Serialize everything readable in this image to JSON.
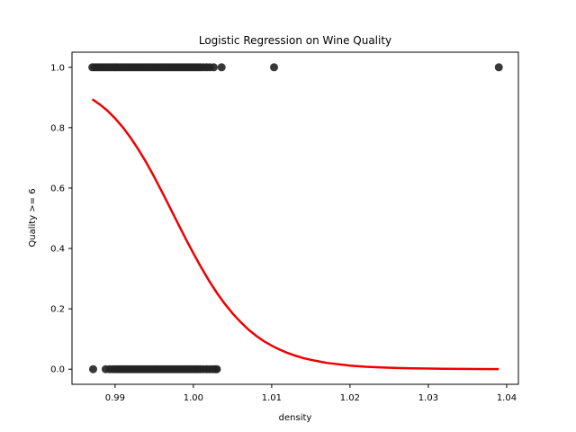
{
  "chart_data": {
    "type": "scatter",
    "title": "Logistic Regression on Wine Quality",
    "xlabel": "density",
    "ylabel": "Quality >= 6",
    "xlim": [
      0.9845,
      1.0415
    ],
    "ylim": [
      -0.05,
      1.05
    ],
    "x_ticks": [
      0.99,
      1.0,
      1.01,
      1.02,
      1.03,
      1.04
    ],
    "x_tick_labels": [
      "0.99",
      "1.00",
      "1.01",
      "1.02",
      "1.03",
      "1.04"
    ],
    "y_ticks": [
      0.0,
      0.2,
      0.4,
      0.6,
      0.8,
      1.0
    ],
    "y_tick_labels": [
      "0.0",
      "0.2",
      "0.4",
      "0.6",
      "0.8",
      "1.0"
    ],
    "grid": false,
    "point_color": "#222222",
    "line_color": "#ee0000",
    "series": [
      {
        "kind": "points",
        "points": [
          {
            "x": 0.9871,
            "y": 1
          },
          {
            "x": 0.9874,
            "y": 1
          },
          {
            "x": 0.9877,
            "y": 1
          },
          {
            "x": 0.988,
            "y": 1
          },
          {
            "x": 0.9883,
            "y": 1
          },
          {
            "x": 0.9886,
            "y": 1
          },
          {
            "x": 0.9889,
            "y": 1
          },
          {
            "x": 0.9892,
            "y": 1
          },
          {
            "x": 0.9895,
            "y": 1
          },
          {
            "x": 0.9898,
            "y": 1
          },
          {
            "x": 0.9901,
            "y": 1
          },
          {
            "x": 0.9904,
            "y": 1
          },
          {
            "x": 0.9907,
            "y": 1
          },
          {
            "x": 0.991,
            "y": 1
          },
          {
            "x": 0.9913,
            "y": 1
          },
          {
            "x": 0.9916,
            "y": 1
          },
          {
            "x": 0.9919,
            "y": 1
          },
          {
            "x": 0.9922,
            "y": 1
          },
          {
            "x": 0.9925,
            "y": 1
          },
          {
            "x": 0.9928,
            "y": 1
          },
          {
            "x": 0.9931,
            "y": 1
          },
          {
            "x": 0.9934,
            "y": 1
          },
          {
            "x": 0.9937,
            "y": 1
          },
          {
            "x": 0.994,
            "y": 1
          },
          {
            "x": 0.9943,
            "y": 1
          },
          {
            "x": 0.9946,
            "y": 1
          },
          {
            "x": 0.9949,
            "y": 1
          },
          {
            "x": 0.9952,
            "y": 1
          },
          {
            "x": 0.9955,
            "y": 1
          },
          {
            "x": 0.9958,
            "y": 1
          },
          {
            "x": 0.9961,
            "y": 1
          },
          {
            "x": 0.9964,
            "y": 1
          },
          {
            "x": 0.9967,
            "y": 1
          },
          {
            "x": 0.997,
            "y": 1
          },
          {
            "x": 0.9973,
            "y": 1
          },
          {
            "x": 0.9976,
            "y": 1
          },
          {
            "x": 0.9979,
            "y": 1
          },
          {
            "x": 0.9982,
            "y": 1
          },
          {
            "x": 0.9985,
            "y": 1
          },
          {
            "x": 0.9988,
            "y": 1
          },
          {
            "x": 0.9991,
            "y": 1
          },
          {
            "x": 0.9994,
            "y": 1
          },
          {
            "x": 0.9997,
            "y": 1
          },
          {
            "x": 1.0,
            "y": 1
          },
          {
            "x": 1.0003,
            "y": 1
          },
          {
            "x": 1.0006,
            "y": 1
          },
          {
            "x": 1.0009,
            "y": 1
          },
          {
            "x": 1.0013,
            "y": 1
          },
          {
            "x": 1.0017,
            "y": 1
          },
          {
            "x": 1.0021,
            "y": 1
          },
          {
            "x": 1.0026,
            "y": 1
          },
          {
            "x": 1.0036,
            "y": 1
          },
          {
            "x": 1.0103,
            "y": 1
          },
          {
            "x": 1.039,
            "y": 1
          },
          {
            "x": 0.9872,
            "y": 0
          },
          {
            "x": 0.9888,
            "y": 0
          },
          {
            "x": 0.9893,
            "y": 0
          },
          {
            "x": 0.9897,
            "y": 0
          },
          {
            "x": 0.9901,
            "y": 0
          },
          {
            "x": 0.9904,
            "y": 0
          },
          {
            "x": 0.9907,
            "y": 0
          },
          {
            "x": 0.991,
            "y": 0
          },
          {
            "x": 0.9913,
            "y": 0
          },
          {
            "x": 0.9916,
            "y": 0
          },
          {
            "x": 0.9919,
            "y": 0
          },
          {
            "x": 0.9922,
            "y": 0
          },
          {
            "x": 0.9925,
            "y": 0
          },
          {
            "x": 0.9928,
            "y": 0
          },
          {
            "x": 0.9931,
            "y": 0
          },
          {
            "x": 0.9934,
            "y": 0
          },
          {
            "x": 0.9937,
            "y": 0
          },
          {
            "x": 0.994,
            "y": 0
          },
          {
            "x": 0.9943,
            "y": 0
          },
          {
            "x": 0.9946,
            "y": 0
          },
          {
            "x": 0.9949,
            "y": 0
          },
          {
            "x": 0.9952,
            "y": 0
          },
          {
            "x": 0.9955,
            "y": 0
          },
          {
            "x": 0.9958,
            "y": 0
          },
          {
            "x": 0.9961,
            "y": 0
          },
          {
            "x": 0.9964,
            "y": 0
          },
          {
            "x": 0.9967,
            "y": 0
          },
          {
            "x": 0.997,
            "y": 0
          },
          {
            "x": 0.9973,
            "y": 0
          },
          {
            "x": 0.9976,
            "y": 0
          },
          {
            "x": 0.9979,
            "y": 0
          },
          {
            "x": 0.9982,
            "y": 0
          },
          {
            "x": 0.9985,
            "y": 0
          },
          {
            "x": 0.9988,
            "y": 0
          },
          {
            "x": 0.9991,
            "y": 0
          },
          {
            "x": 0.9994,
            "y": 0
          },
          {
            "x": 0.9997,
            "y": 0
          },
          {
            "x": 1.0,
            "y": 0
          },
          {
            "x": 1.0003,
            "y": 0
          },
          {
            "x": 1.0006,
            "y": 0
          },
          {
            "x": 1.0009,
            "y": 0
          },
          {
            "x": 1.0013,
            "y": 0
          },
          {
            "x": 1.0017,
            "y": 0
          },
          {
            "x": 1.0021,
            "y": 0
          },
          {
            "x": 1.0025,
            "y": 0
          },
          {
            "x": 1.0028,
            "y": 0
          },
          {
            "x": 1.003,
            "y": 0
          }
        ]
      },
      {
        "kind": "line",
        "x": [
          0.9871,
          0.988,
          0.989,
          0.99,
          0.991,
          0.992,
          0.993,
          0.994,
          0.995,
          0.996,
          0.997,
          0.998,
          0.999,
          1.0,
          1.001,
          1.002,
          1.003,
          1.004,
          1.005,
          1.006,
          1.007,
          1.008,
          1.009,
          1.01,
          1.011,
          1.012,
          1.013,
          1.014,
          1.015,
          1.016,
          1.017,
          1.018,
          1.019,
          1.02,
          1.022,
          1.024,
          1.026,
          1.028,
          1.03,
          1.032,
          1.034,
          1.036,
          1.039
        ],
        "y": [
          0.894,
          0.878,
          0.857,
          0.831,
          0.801,
          0.766,
          0.727,
          0.684,
          0.637,
          0.587,
          0.536,
          0.484,
          0.433,
          0.384,
          0.337,
          0.293,
          0.253,
          0.217,
          0.185,
          0.157,
          0.132,
          0.111,
          0.093,
          0.078,
          0.065,
          0.054,
          0.045,
          0.037,
          0.031,
          0.026,
          0.021,
          0.018,
          0.015,
          0.012,
          0.008,
          0.006,
          0.004,
          0.003,
          0.002,
          0.0013,
          0.0009,
          0.0006,
          0.0003
        ]
      }
    ]
  }
}
